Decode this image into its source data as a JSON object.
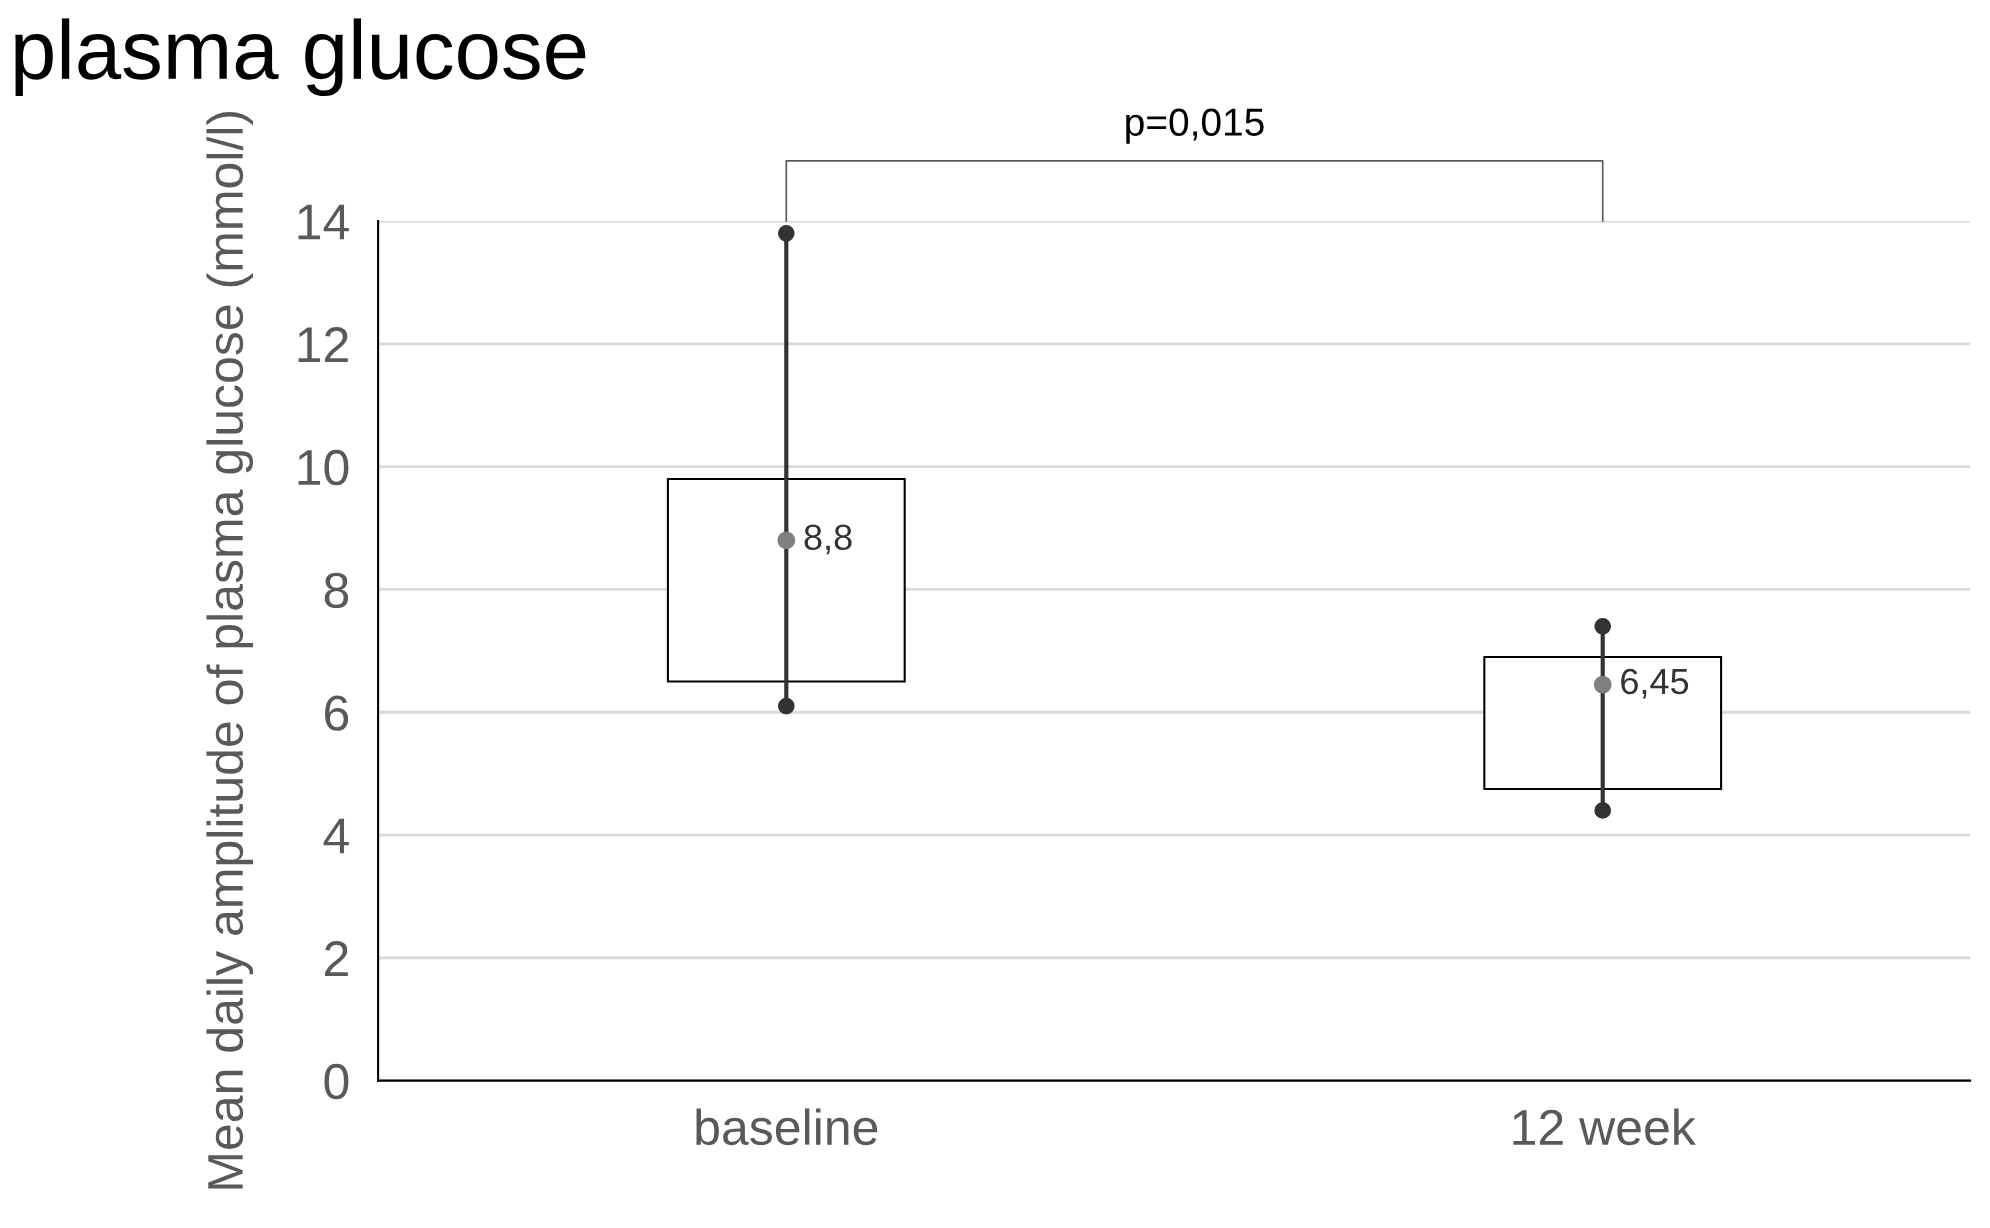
{
  "chart_data": {
    "type": "bar",
    "title": "plasma glucose",
    "ylabel": "Mean daily amplitude of plasma glucose (mmol/l)",
    "categories": [
      "baseline",
      "12 week"
    ],
    "series": [
      {
        "color": "#ffffff",
        "base": [
          6.5,
          4.75
        ],
        "values": [
          3.3,
          2.15
        ]
      },
      {
        "type": "line",
        "color": "#333333",
        "x": [
          "baseline",
          "baseline"
        ],
        "values": [
          6.1,
          13.8
        ],
        "marker": "circle"
      },
      {
        "type": "line",
        "color": "#333333",
        "x": [
          "12 week",
          "12 week"
        ],
        "values": [
          4.4,
          7.4
        ],
        "marker": "circle"
      },
      {
        "type": "scatter",
        "color": "#7f7f7f",
        "values": [
          8.8,
          6.45
        ],
        "value_labels": [
          "8,8",
          "6,45"
        ]
      }
    ],
    "ylim": [
      0,
      14
    ],
    "yticks": [
      0,
      2,
      4,
      6,
      8,
      10,
      12,
      14
    ],
    "grid": "y",
    "annotations": [
      "p=0,015"
    ]
  }
}
